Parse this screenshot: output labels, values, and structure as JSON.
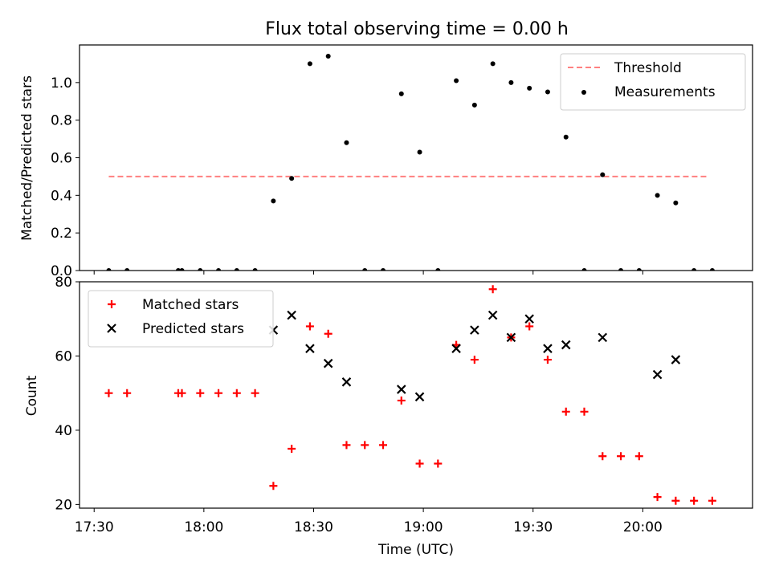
{
  "chart_data": [
    {
      "type": "scatter",
      "title": "Flux total observing time = 0.00 h",
      "xlabel": "",
      "ylabel": "Matched/Predicted stars",
      "ylim": [
        0,
        1.2
      ],
      "yticks": [
        "0.0",
        "0.2",
        "0.4",
        "0.6",
        "0.8",
        "1.0"
      ],
      "xticks": [
        "17:30",
        "18:00",
        "18:30",
        "19:00",
        "19:30",
        "20:00"
      ],
      "xrange": [
        "17:26",
        "20:30"
      ],
      "legend_position": "top-right",
      "threshold": {
        "name": "Threshold",
        "value": 0.5,
        "x_start": "17:34",
        "x_end": "20:18",
        "color": "#ff8080",
        "style": "dashed"
      },
      "series": [
        {
          "name": "Measurements",
          "color": "#000000",
          "x": [
            "17:34",
            "17:39",
            "17:53",
            "17:54",
            "17:59",
            "18:04",
            "18:09",
            "18:14",
            "18:19",
            "18:24",
            "18:29",
            "18:34",
            "18:39",
            "18:44",
            "18:49",
            "18:54",
            "18:59",
            "19:04",
            "19:09",
            "19:14",
            "19:19",
            "19:24",
            "19:29",
            "19:34",
            "19:39",
            "19:44",
            "19:49",
            "19:54",
            "19:59",
            "20:04",
            "20:09",
            "20:14",
            "20:19"
          ],
          "y": [
            0,
            0,
            0,
            0,
            0,
            0,
            0,
            0,
            0.37,
            0.49,
            1.1,
            1.14,
            0.68,
            0,
            0,
            0.94,
            0.63,
            0,
            1.01,
            0.88,
            1.1,
            1.0,
            0.97,
            0.95,
            0.71,
            0,
            0.51,
            0,
            0,
            0.4,
            0.36,
            0,
            0
          ]
        }
      ]
    },
    {
      "type": "scatter",
      "title": "",
      "xlabel": "Time (UTC)",
      "ylabel": "Count",
      "ylim": [
        19,
        80
      ],
      "yticks": [
        "20",
        "40",
        "60",
        "80"
      ],
      "xticks": [
        "17:30",
        "18:00",
        "18:30",
        "19:00",
        "19:30",
        "20:00"
      ],
      "xrange": [
        "17:26",
        "20:30"
      ],
      "legend_position": "top-left",
      "series": [
        {
          "name": "Matched stars",
          "color": "#ff0000",
          "marker": "plus",
          "x": [
            "17:34",
            "17:39",
            "17:53",
            "17:54",
            "17:59",
            "18:04",
            "18:09",
            "18:14",
            "18:19",
            "18:24",
            "18:29",
            "18:34",
            "18:39",
            "18:44",
            "18:49",
            "18:54",
            "18:59",
            "19:04",
            "19:09",
            "19:14",
            "19:19",
            "19:24",
            "19:29",
            "19:34",
            "19:39",
            "19:44",
            "19:49",
            "19:54",
            "19:59",
            "20:04",
            "20:09",
            "20:14",
            "20:19"
          ],
          "y": [
            50,
            50,
            50,
            50,
            50,
            50,
            50,
            50,
            25,
            35,
            68,
            66,
            36,
            36,
            36,
            48,
            31,
            31,
            63,
            59,
            78,
            65,
            68,
            59,
            45,
            45,
            33,
            33,
            33,
            22,
            21,
            21,
            21
          ]
        },
        {
          "name": "Predicted stars",
          "color": "#000000",
          "marker": "x",
          "x": [
            "18:19",
            "18:24",
            "18:29",
            "18:34",
            "18:39",
            "18:54",
            "18:59",
            "19:09",
            "19:14",
            "19:19",
            "19:24",
            "19:29",
            "19:34",
            "19:39",
            "19:49",
            "20:04",
            "20:09"
          ],
          "y": [
            67,
            71,
            62,
            58,
            53,
            51,
            49,
            62,
            67,
            71,
            65,
            70,
            62,
            63,
            65,
            55,
            59
          ]
        }
      ]
    }
  ]
}
